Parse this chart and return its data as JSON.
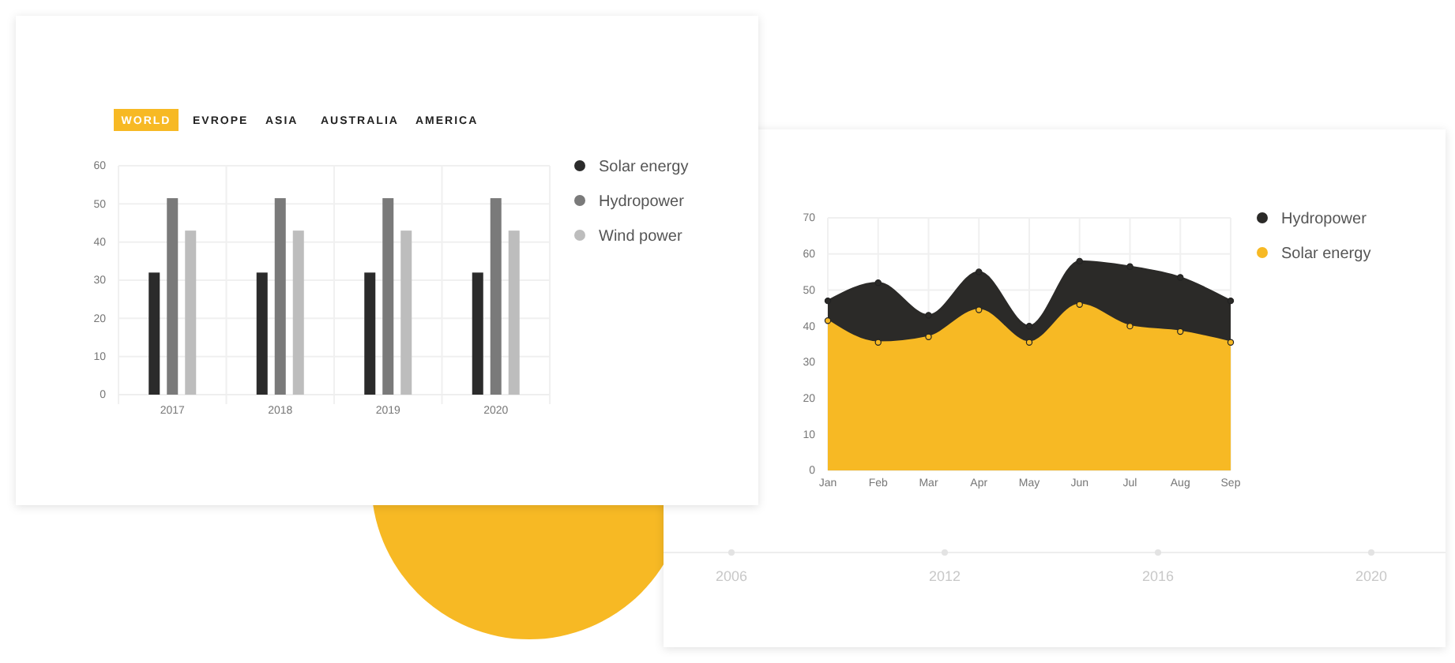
{
  "chart_data": [
    {
      "type": "bar",
      "categories": [
        "2017",
        "2018",
        "2019",
        "2020"
      ],
      "series": [
        {
          "name": "Solar energy",
          "color": "#2b2b2b",
          "values": [
            32,
            32,
            32,
            32
          ]
        },
        {
          "name": "Hydropower",
          "color": "#7a7a7a",
          "values": [
            51.5,
            51.5,
            51.5,
            51.5
          ]
        },
        {
          "name": "Wind power",
          "color": "#bdbdbd",
          "values": [
            43,
            43,
            43,
            43
          ]
        }
      ],
      "ylim": [
        0,
        60
      ],
      "yticks": [
        0,
        10,
        20,
        30,
        40,
        50,
        60
      ],
      "grid": true,
      "legend": "top right",
      "annotations": [
        "WORLD",
        "EVROPE",
        "ASIA",
        "AUSTRALIA",
        "AMERICA"
      ]
    },
    {
      "type": "area",
      "categories": [
        "Jan",
        "Feb",
        "Mar",
        "Apr",
        "May",
        "Jun",
        "Jul",
        "Aug",
        "Sep"
      ],
      "series": [
        {
          "name": "Hydropower",
          "color": "#2b2a28",
          "values": [
            47,
            52,
            43,
            55,
            40,
            58,
            56.5,
            53.5,
            47
          ]
        },
        {
          "name": "Solar energy",
          "color": "#f7b924",
          "values": [
            41.5,
            35.5,
            37,
            44.5,
            35.5,
            46,
            40,
            38.5,
            35.5
          ]
        }
      ],
      "ylim": [
        0,
        70
      ],
      "yticks": [
        0,
        10,
        20,
        30,
        40,
        50,
        60,
        70
      ],
      "grid": true,
      "legend": "top right",
      "marker": "circle",
      "annotations": [
        "2006",
        "2012",
        "2016",
        "2020"
      ]
    }
  ]
}
